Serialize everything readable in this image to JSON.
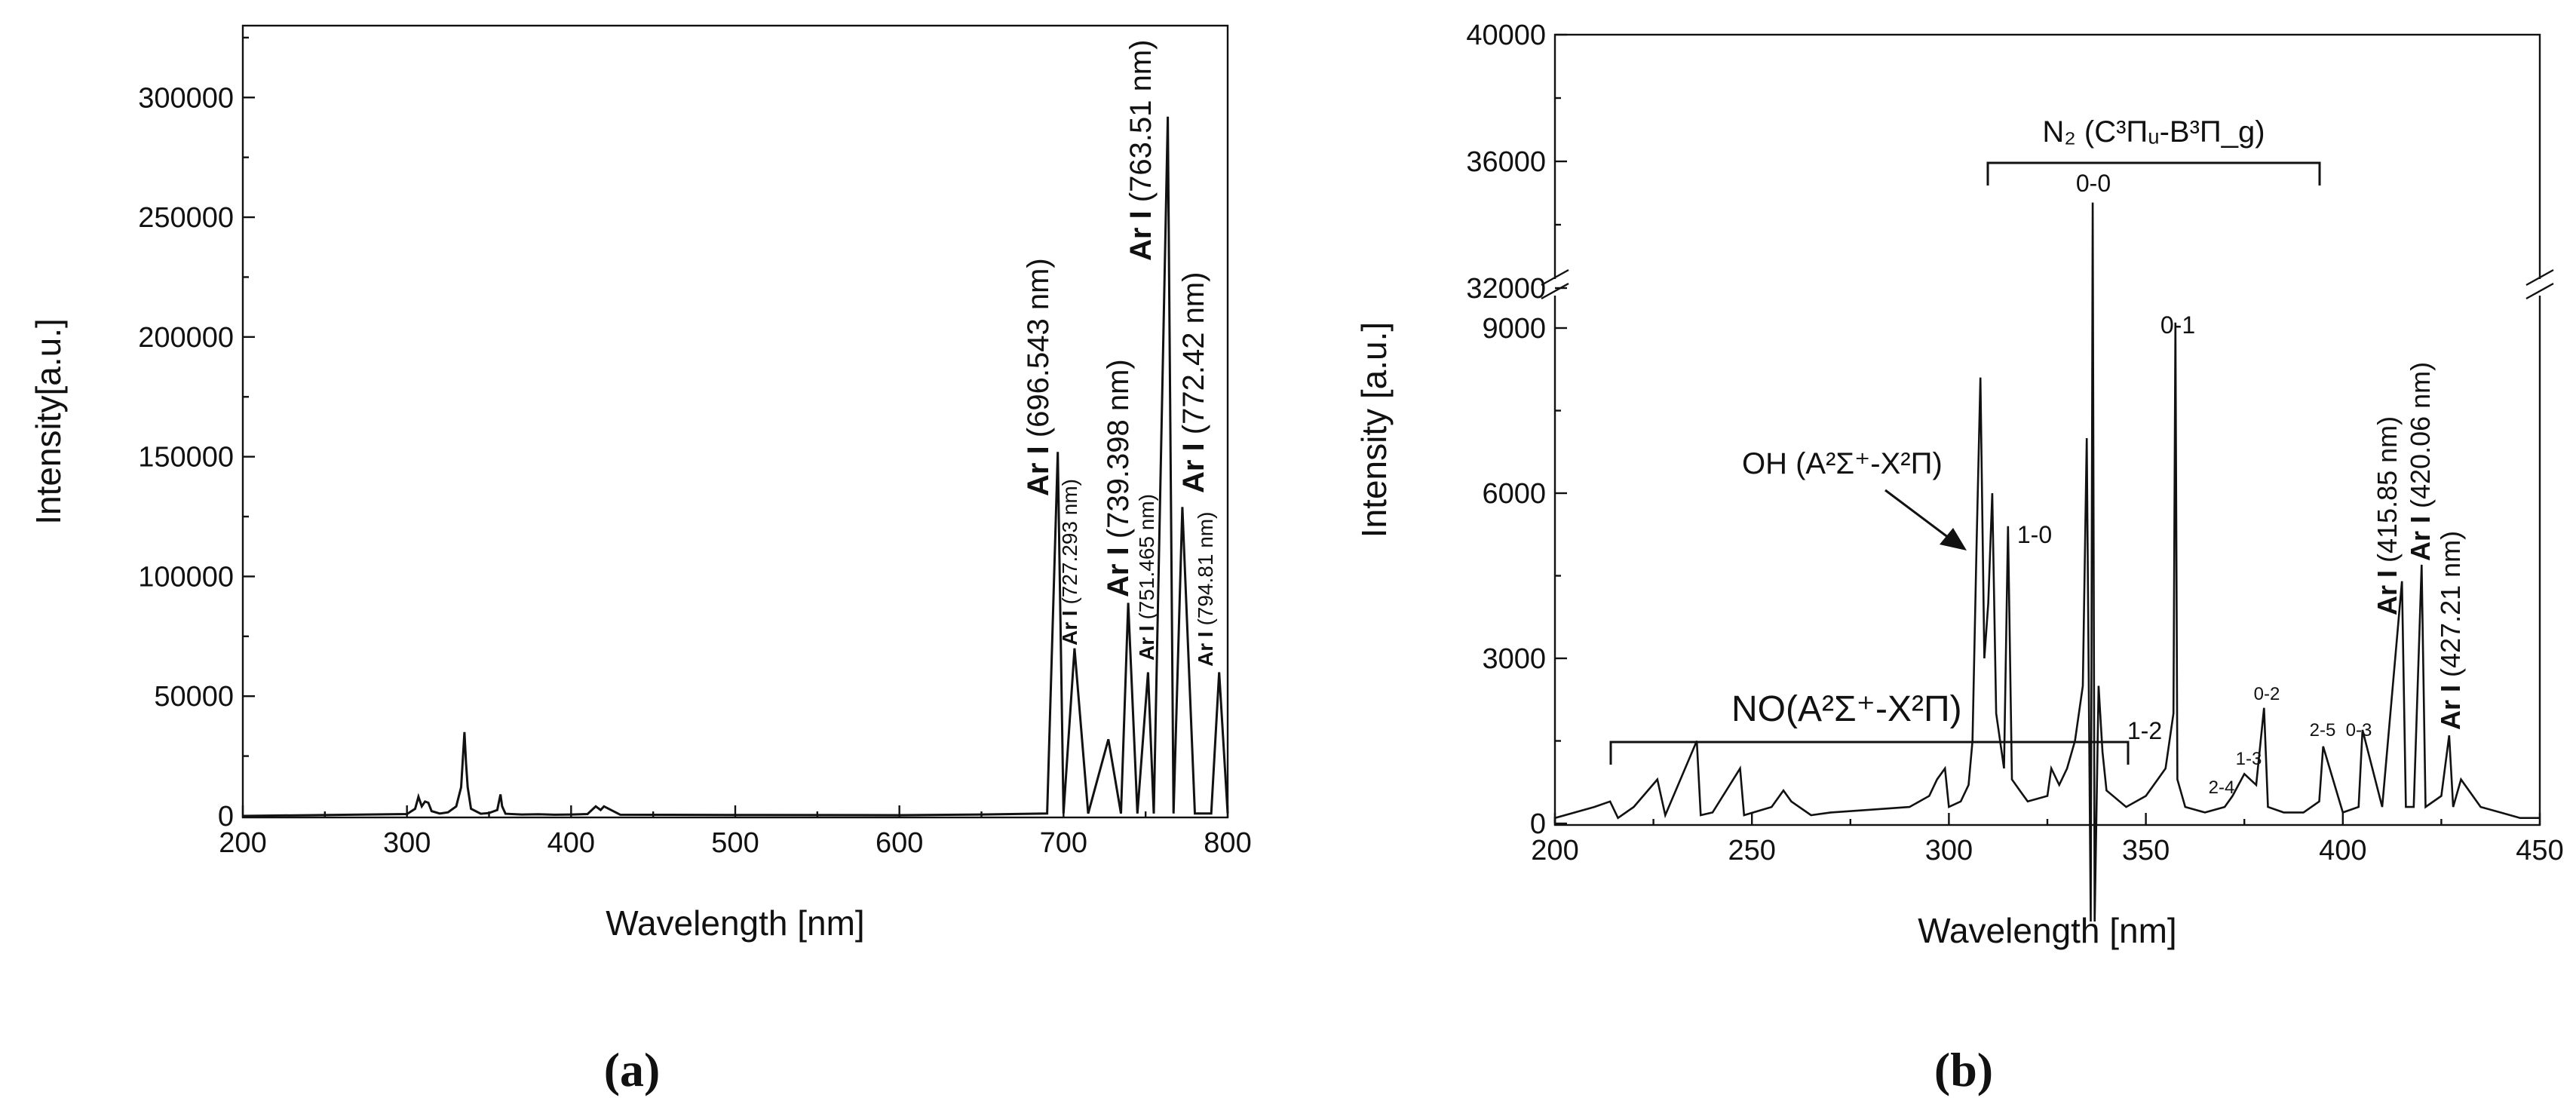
{
  "chart_data": [
    {
      "type": "line",
      "panel_label": "(a)",
      "xlabel": "Wavelength [nm]",
      "ylabel": "Intensity[a.u.]",
      "xlim": [
        200,
        800
      ],
      "ylim": [
        0,
        330000
      ],
      "xticks": [
        "200",
        "300",
        "400",
        "500",
        "600",
        "700",
        "800"
      ],
      "yticks": [
        "0",
        "50000",
        "100000",
        "150000",
        "200000",
        "250000",
        "300000"
      ],
      "series": [
        {
          "x": [
            300,
            305,
            307,
            309,
            311,
            313,
            315,
            320,
            325,
            330,
            333,
            335,
            336,
            337,
            339,
            345,
            350,
            355,
            357,
            358,
            360,
            370,
            380,
            390,
            400,
            410,
            415,
            418,
            420,
            430,
            500,
            600,
            650,
            690,
            696.5,
            700,
            706.7,
            715,
            727.3,
            735,
            739.4,
            745,
            751.5,
            755,
            763.5,
            767,
            772.4,
            780,
            790,
            794.8,
            800
          ],
          "y": [
            800,
            3000,
            8000,
            4000,
            6000,
            5500,
            2000,
            1000,
            1500,
            4000,
            12000,
            35000,
            22000,
            12000,
            3000,
            900,
            1200,
            2500,
            9000,
            4000,
            900,
            600,
            700,
            500,
            600,
            800,
            4000,
            2500,
            4000,
            500,
            400,
            300,
            600,
            1000,
            152000,
            1000,
            70000,
            1000,
            32000,
            1000,
            89000,
            1000,
            60000,
            1000,
            292000,
            1000,
            129000,
            1000,
            1000,
            60000,
            1000
          ]
        }
      ],
      "annotations": [
        {
          "bold": "Ar I",
          "text": " (696.543 nm)"
        },
        {
          "bold": "Ar I",
          "text": " (727.293 nm)"
        },
        {
          "bold": "Ar I",
          "text": " (739.398 nm)"
        },
        {
          "bold": "Ar I",
          "text": " (751.465 nm)"
        },
        {
          "bold": "Ar I",
          "text": " (763.51 nm)"
        },
        {
          "bold": "Ar I",
          "text": " (772.42 nm)"
        },
        {
          "bold": "Ar I",
          "text": " (794.81 nm)"
        }
      ]
    },
    {
      "type": "line",
      "panel_label": "(b)",
      "xlabel": "Wavelength [nm]",
      "ylabel": "Intensity [a.u.]",
      "xlim": [
        200,
        450
      ],
      "ylim": [
        0,
        40000
      ],
      "y_axis_break": [
        9800,
        32000
      ],
      "xticks": [
        "200",
        "250",
        "300",
        "350",
        "400",
        "450"
      ],
      "yticks": [
        "0",
        "3000",
        "6000",
        "9000",
        "32000",
        "36000",
        "40000"
      ],
      "series": [
        {
          "x": [
            200,
            210,
            214,
            216,
            220,
            226,
            228,
            236,
            237,
            240,
            247,
            248,
            255,
            258,
            260,
            265,
            270,
            280,
            290,
            295,
            297,
            299,
            300,
            303,
            305,
            306,
            307,
            308,
            309,
            310,
            311,
            312,
            313,
            314,
            315,
            316,
            318,
            320,
            325,
            326,
            328,
            330,
            332,
            334,
            335,
            336,
            336.5,
            337,
            338,
            339,
            340,
            345,
            350,
            353,
            355,
            357,
            357.5,
            358,
            360,
            365,
            370,
            372,
            375,
            378,
            380,
            381,
            385,
            390,
            394,
            395,
            400,
            404,
            405,
            410,
            415,
            416,
            418,
            420,
            421,
            425,
            427,
            428,
            430,
            435,
            440,
            445,
            450
          ],
          "y": [
            100,
            300,
            400,
            100,
            300,
            800,
            150,
            1500,
            150,
            200,
            1000,
            150,
            300,
            600,
            400,
            150,
            200,
            250,
            300,
            500,
            800,
            1000,
            300,
            400,
            700,
            1500,
            5000,
            8100,
            3000,
            4000,
            6000,
            2000,
            1500,
            1000,
            5400,
            800,
            600,
            400,
            500,
            1000,
            700,
            1000,
            1500,
            2500,
            7000,
            12000,
            34700,
            12000,
            2500,
            1300,
            600,
            300,
            500,
            800,
            1000,
            2000,
            9100,
            800,
            300,
            200,
            300,
            500,
            900,
            700,
            2100,
            300,
            200,
            200,
            400,
            1400,
            200,
            300,
            1700,
            300,
            4400,
            300,
            300,
            4700,
            300,
            500,
            1600,
            300,
            800,
            300,
            200,
            100,
            100
          ]
        }
      ],
      "annotations": [
        {
          "text": "NO(A²Σ⁺-X²Π)"
        },
        {
          "text": "OH (A²Σ⁺-X²Π)"
        },
        {
          "text": "N₂ (C³Πᵤ-B³Π_g)"
        },
        {
          "text": "0-0"
        },
        {
          "text": "0-1"
        },
        {
          "text": "1-0"
        },
        {
          "text": "1-2"
        },
        {
          "text": "2-4"
        },
        {
          "text": "1-3"
        },
        {
          "text": "0-2"
        },
        {
          "text": "2-5"
        },
        {
          "text": "0-3"
        },
        {
          "bold": "Ar I",
          "text": " (415.85 nm)"
        },
        {
          "bold": "Ar I",
          "text": " (420.06 nm)"
        },
        {
          "bold": "Ar I",
          "text": " (427.21 nm)"
        }
      ]
    }
  ]
}
